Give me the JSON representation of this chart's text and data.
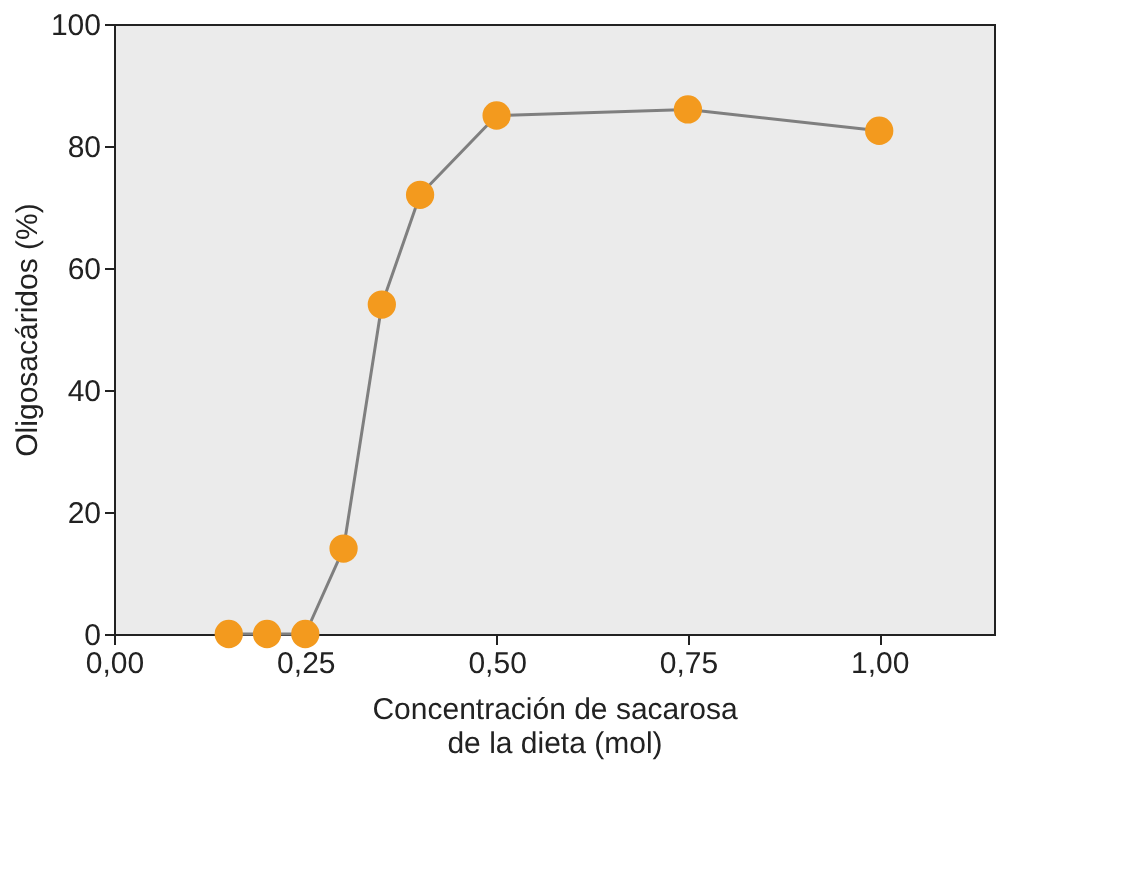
{
  "chart_data": {
    "type": "line",
    "xlabel": "Concentración de sacarosa\nde la dieta (mol)",
    "ylabel": "Oligosacáridos (%)",
    "x": [
      0.15,
      0.2,
      0.25,
      0.3,
      0.35,
      0.4,
      0.5,
      0.75,
      1.0
    ],
    "series": [
      {
        "color": "#f39a1e",
        "values": [
          0,
          0,
          0,
          14,
          54,
          72,
          85,
          86,
          82.5
        ]
      }
    ],
    "xlim": [
      0,
      1.15
    ],
    "xticks": [
      {
        "value": 0,
        "label": "0,00"
      },
      {
        "value": 0.25,
        "label": "0,25"
      },
      {
        "value": 0.5,
        "label": "0,50"
      },
      {
        "value": 0.75,
        "label": "0,75"
      },
      {
        "value": 1.0,
        "label": "1,00"
      }
    ],
    "ylim": [
      0,
      100
    ],
    "yticks": [
      0,
      20,
      40,
      60,
      80,
      100
    ],
    "grid": false,
    "marker": "circle",
    "line_style": "solid"
  }
}
